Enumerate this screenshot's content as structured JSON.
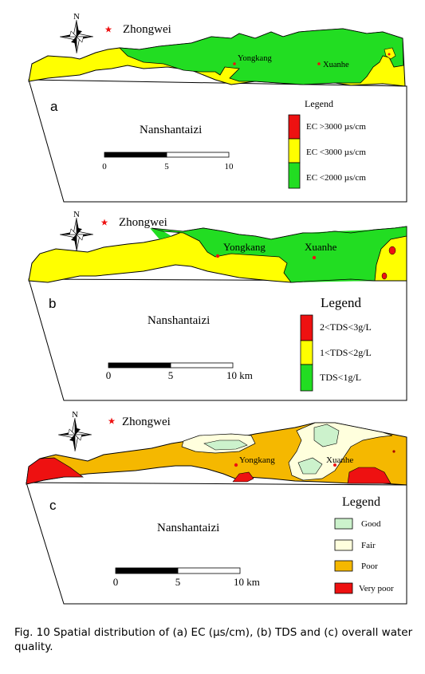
{
  "colors": {
    "green": "#22dd22",
    "yellow": "#ffff00",
    "red": "#ee1111",
    "orange": "#f5b800",
    "light_green": "#ccf2cc",
    "cream": "#ffffdd",
    "outline": "#000000"
  },
  "icons": {
    "north_arrow": "north-arrow-icon",
    "city_marker": "red-star-icon",
    "site_marker": "red-dot-icon"
  },
  "maps": [
    {
      "panel_label": "a",
      "north_label": "N",
      "city_label": "Zhongwei",
      "sites": [
        "Yongkang",
        "Xuanhe"
      ],
      "region_label": "Nanshantaizi",
      "legend": {
        "title": "Legend",
        "items": [
          {
            "label": "EC >3000 µs/cm",
            "color": "#ee1111"
          },
          {
            "label": "EC <3000 µs/cm",
            "color": "#ffff00"
          },
          {
            "label": "EC <2000 µs/cm",
            "color": "#22dd22"
          }
        ]
      },
      "scale": {
        "ticks": [
          "0",
          "5",
          "10"
        ]
      }
    },
    {
      "panel_label": "b",
      "north_label": "N",
      "city_label": "Zhongwei",
      "sites": [
        "Yongkang",
        "Xuanhe"
      ],
      "region_label": "Nanshantaizi",
      "legend": {
        "title": "Legend",
        "items": [
          {
            "label": "2<TDS<3g/L",
            "color": "#ee1111"
          },
          {
            "label": "1<TDS<2g/L",
            "color": "#ffff00"
          },
          {
            "label": "TDS<1g/L",
            "color": "#22dd22"
          }
        ]
      },
      "scale": {
        "ticks": [
          "0",
          "5",
          "10 km"
        ]
      }
    },
    {
      "panel_label": "c",
      "north_label": "N",
      "city_label": "Zhongwei",
      "sites": [
        "Yongkang",
        "Xuanhe"
      ],
      "region_label": "Nanshantaizi",
      "legend": {
        "title": "Legend",
        "items": [
          {
            "label": "Good",
            "color": "#ccf2cc"
          },
          {
            "label": "Fair",
            "color": "#ffffdd"
          },
          {
            "label": "Poor",
            "color": "#f5b800"
          },
          {
            "label": "Very poor",
            "color": "#ee1111"
          }
        ]
      },
      "scale": {
        "ticks": [
          "0",
          "5",
          "10 km"
        ]
      }
    }
  ],
  "caption": "Fig. 10 Spatial distribution of (a) EC (µs/cm), (b) TDS and (c) overall water quality."
}
